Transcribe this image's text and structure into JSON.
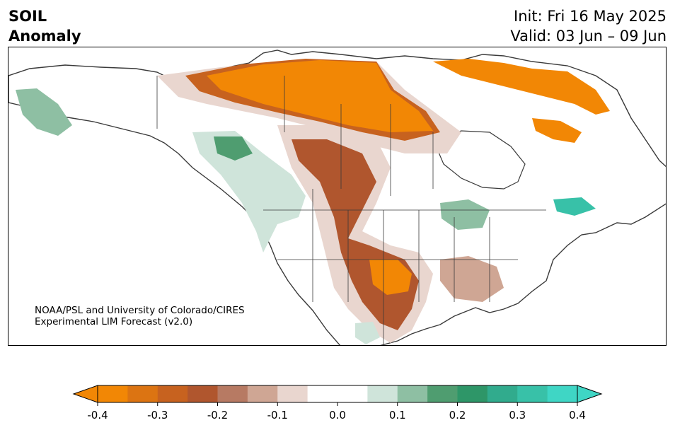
{
  "header": {
    "title_line1": "SOIL",
    "title_line2": "Anomaly",
    "init": "Init: Fri 16 May 2025",
    "valid": "Valid: 03 Jun – 09 Jun"
  },
  "credit": {
    "line1": "NOAA/PSL and University of Colorado/CIRES",
    "line2": "Experimental LIM Forecast (v2.0)"
  },
  "colorbar": {
    "colors": [
      "#f28705",
      "#dc7412",
      "#c7621f",
      "#b0562e",
      "#b77a63",
      "#cfa694",
      "#e9d6cf",
      "#ffffff",
      "#ffffff",
      "#cfe4da",
      "#8ebfa3",
      "#4f9d70",
      "#2e9668",
      "#31ab8d",
      "#38c1a8",
      "#3fd6c5"
    ],
    "ticks": [
      "-0.4",
      "-0.3",
      "-0.2",
      "-0.1",
      "0.0",
      "0.1",
      "0.2",
      "0.3",
      "0.4"
    ]
  }
}
